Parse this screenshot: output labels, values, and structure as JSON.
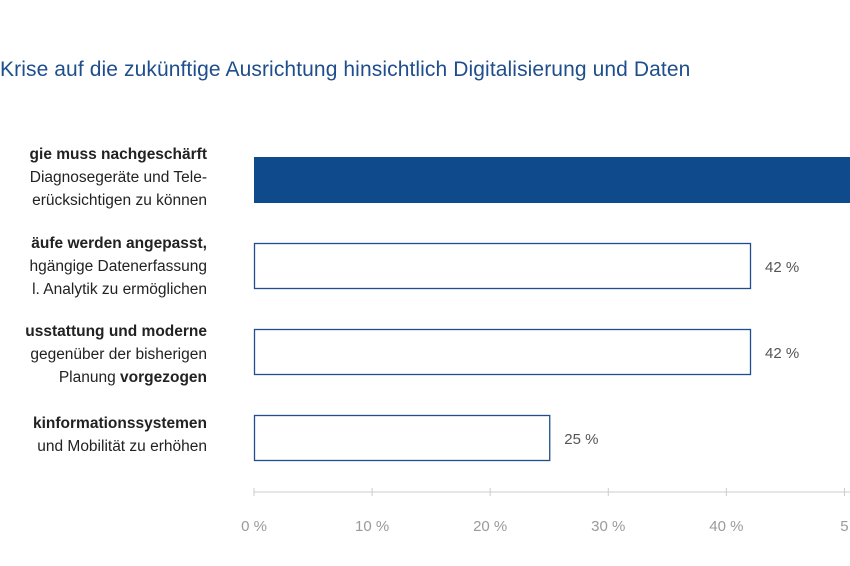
{
  "title": "Krise auf die zukünftige Ausrichtung hinsichtlich Digitalisierung und Daten",
  "categories": [
    [
      {
        "text": "gie muss nachgeschärft",
        "bold": true
      },
      {
        "text": "Diagnosegeräte und Tele-",
        "bold": false
      },
      {
        "text": "erücksichtigen zu können",
        "bold": false
      }
    ],
    [
      {
        "text": "äufe werden angepasst,",
        "bold": true
      },
      {
        "text": "hgängige Datenerfassung",
        "bold": false
      },
      {
        "text": "l. Analytik zu ermöglichen",
        "bold": false
      }
    ],
    [
      {
        "text": "usstattung und moderne",
        "bold": true
      },
      {
        "text": "gegenüber der bisherigen",
        "bold": false
      },
      {
        "text": "Planung ",
        "bold": false,
        "tail": "vorgezogen"
      }
    ],
    [
      {
        "text": "kinformationssystemen",
        "bold": true
      },
      {
        "text": "und Mobilität zu erhöhen",
        "bold": false
      }
    ]
  ],
  "chart_data": {
    "type": "bar",
    "orientation": "horizontal",
    "values": [
      null,
      42,
      42,
      25
    ],
    "value_labels": [
      "",
      "42 %",
      "42 %",
      "25 %"
    ],
    "bar_styles": [
      "filled",
      "outline",
      "outline",
      "outline"
    ],
    "xticks": [
      "0 %",
      "10 %",
      "20 %",
      "30 %",
      "40 %",
      "5"
    ],
    "xtick_values": [
      0,
      10,
      20,
      30,
      40,
      50
    ],
    "xlim": [
      0,
      50
    ],
    "colors": {
      "fill": "#0f4a8c",
      "outline": "#1f4e8c",
      "axis": "#cccccc"
    }
  }
}
